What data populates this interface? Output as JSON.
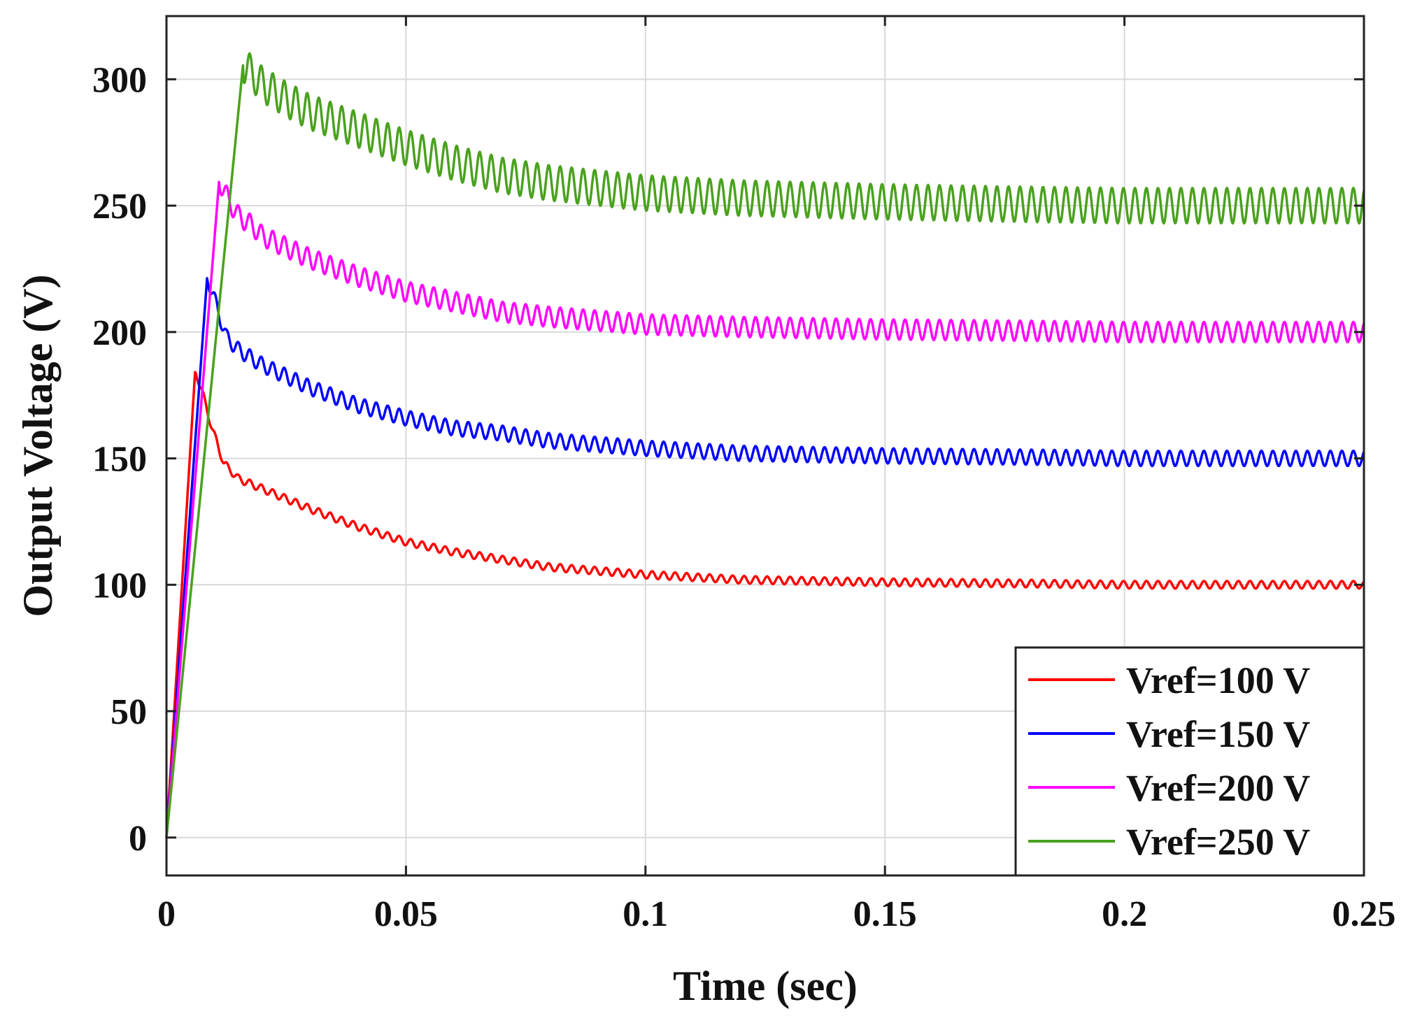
{
  "chart_data": {
    "type": "line",
    "title": "",
    "xlabel": "Time (sec)",
    "ylabel": "Output Voltage (V)",
    "xlim": [
      0,
      0.25
    ],
    "ylim": [
      -15,
      325
    ],
    "xticks": [
      0,
      0.05,
      0.1,
      0.15,
      0.2,
      0.25
    ],
    "xtick_labels": [
      "0",
      "0.05",
      "0.1",
      "0.15",
      "0.2",
      "0.25"
    ],
    "yticks": [
      0,
      50,
      100,
      150,
      200,
      250,
      300
    ],
    "ytick_labels": [
      "0",
      "50",
      "100",
      "150",
      "200",
      "250",
      "300"
    ],
    "grid": true,
    "legend_position": "bottom-right",
    "series": [
      {
        "name": "Vref=100 V",
        "color": "#ff0000",
        "x": [
          0,
          0.006,
          0.0075,
          0.0095,
          0.012,
          0.015,
          0.02,
          0.03,
          0.04,
          0.05,
          0.06,
          0.07,
          0.08,
          0.1,
          0.12,
          0.15,
          0.18,
          0.2,
          0.25
        ],
        "y": [
          0,
          185,
          176,
          162,
          148,
          142,
          138,
          130,
          123,
          117,
          113,
          110,
          107,
          104,
          102,
          101,
          100.5,
          100,
          100
        ],
        "ripple": 1.5
      },
      {
        "name": "Vref=150 V",
        "color": "#0000ff",
        "x": [
          0,
          0.0085,
          0.0105,
          0.0125,
          0.015,
          0.02,
          0.03,
          0.04,
          0.05,
          0.06,
          0.07,
          0.08,
          0.1,
          0.12,
          0.15,
          0.18,
          0.2,
          0.25
        ],
        "y": [
          0,
          222,
          210,
          198,
          193,
          187,
          178,
          171,
          166,
          162,
          160,
          157,
          154,
          152,
          151,
          150.5,
          150,
          150
        ],
        "ripple": 3
      },
      {
        "name": "Vref=200 V",
        "color": "#ff00ff",
        "x": [
          0,
          0.011,
          0.013,
          0.015,
          0.018,
          0.02,
          0.03,
          0.04,
          0.05,
          0.06,
          0.07,
          0.08,
          0.1,
          0.12,
          0.15,
          0.18,
          0.2,
          0.25
        ],
        "y": [
          0,
          260,
          252,
          246,
          242,
          238,
          229,
          222,
          216,
          212,
          208,
          206,
          203,
          202,
          201,
          200.5,
          200,
          200
        ],
        "ripple": 4
      },
      {
        "name": "Vref=250 V",
        "color": "#4aa11e",
        "x": [
          0,
          0.016,
          0.018,
          0.02,
          0.025,
          0.03,
          0.04,
          0.05,
          0.06,
          0.07,
          0.08,
          0.1,
          0.12,
          0.15,
          0.18,
          0.2,
          0.25
        ],
        "y": [
          0,
          306,
          302,
          298,
          292,
          287,
          280,
          273,
          267,
          262,
          259,
          255,
          253,
          251.5,
          250.5,
          250,
          250
        ],
        "ripple": 7
      }
    ]
  }
}
